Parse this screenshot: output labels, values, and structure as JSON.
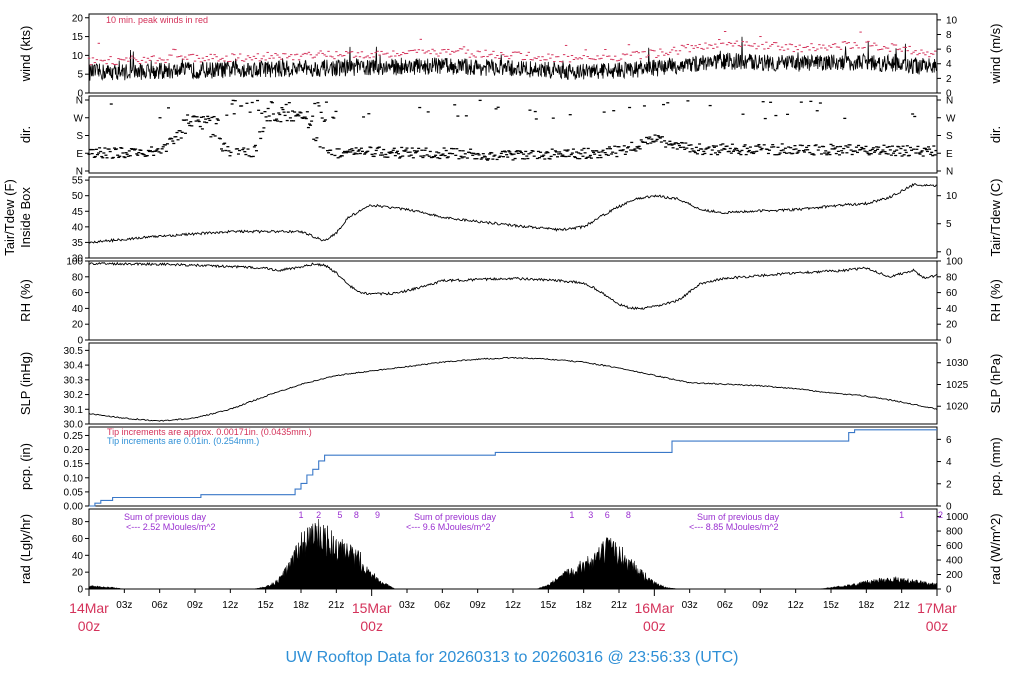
{
  "title": "UW Rooftop Data for 20260313  to  20260316 @ 23:56:33  (UTC)",
  "colors": {
    "trace": "#000000",
    "peak": "#d4325a",
    "pcp": "#3a78c8",
    "ticklabel": "#d4325a",
    "note_pink": "#d4325a",
    "note_blue": "#2e8fd6",
    "purple": "#9a2fd0"
  },
  "time_axis": {
    "minor_labels": [
      "03z",
      "06z",
      "09z",
      "12z",
      "15z",
      "18z",
      "21z"
    ],
    "day_labels": [
      {
        "date": "14Mar",
        "hour": "00z"
      },
      {
        "date": "15Mar",
        "hour": "00z"
      },
      {
        "date": "16Mar",
        "hour": "00z"
      },
      {
        "date": "17Mar",
        "hour": "00z"
      }
    ]
  },
  "chart_data": [
    {
      "id": "wind",
      "type": "line",
      "ylabel_left": "wind (kts)",
      "ylabel_right": "wind (m/s)",
      "ylim": [
        0,
        21
      ],
      "yticks_left": [
        0,
        5,
        10,
        15,
        20
      ],
      "yticks_right": [
        0,
        2,
        4,
        6,
        8,
        10
      ],
      "annotation": "10 min. peak winds in red",
      "series": [
        {
          "name": "wind",
          "x_hours": [
            0,
            6,
            12,
            18,
            24,
            30,
            36,
            42,
            48,
            54,
            60,
            66,
            72
          ],
          "values": [
            5.5,
            5.8,
            6.2,
            6.5,
            6.8,
            7.2,
            6.5,
            5.6,
            6.6,
            8.5,
            7.8,
            8.2,
            6.8
          ]
        },
        {
          "name": "10 min. peak winds",
          "x_hours": [
            0,
            6,
            12,
            18,
            24,
            30,
            36,
            42,
            48,
            54,
            60,
            66,
            72
          ],
          "values": [
            8,
            8.5,
            9,
            9.5,
            10,
            10.5,
            9.5,
            8.5,
            10,
            13,
            11.5,
            12.5,
            10
          ]
        }
      ]
    },
    {
      "id": "dir",
      "type": "scatter",
      "ylabel_left": "dir.",
      "ylabel_right": "dir.",
      "yticks_left": [
        "N",
        "E",
        "S",
        "W",
        "N"
      ],
      "yticks_right": [
        "N",
        "E",
        "S",
        "W",
        "N"
      ]
    },
    {
      "id": "temp",
      "type": "line",
      "ylabel_left": "Tair/Tdew (F)",
      "ylabel_left2": "Inside Box",
      "ylabel_right": "Tair/Tdew (C)",
      "ylim": [
        30,
        56
      ],
      "yticks_left": [
        30,
        35,
        40,
        45,
        50,
        55
      ],
      "yticks_right": [
        0,
        5,
        10
      ],
      "series": [
        {
          "name": "Tair",
          "x_hours": [
            0,
            6,
            12,
            18,
            20,
            21,
            22,
            24,
            26,
            28,
            30,
            36,
            40,
            42,
            44,
            46,
            48,
            50,
            52,
            54,
            56,
            60,
            64,
            66,
            68,
            70,
            72
          ],
          "values": [
            35,
            37,
            38.5,
            38.5,
            35.5,
            38,
            43,
            47,
            46,
            45,
            43,
            40.5,
            39,
            40,
            44.5,
            48.5,
            50,
            49,
            45.5,
            44.5,
            45,
            45.5,
            47,
            47.5,
            49.5,
            53.5,
            53
          ]
        }
      ]
    },
    {
      "id": "rh",
      "type": "line",
      "ylabel_left": "RH (%)",
      "ylabel_right": "RH (%)",
      "ylim": [
        0,
        100
      ],
      "yticks_left": [
        0,
        20,
        40,
        60,
        80,
        100
      ],
      "yticks_right": [
        0,
        20,
        40,
        60,
        80,
        100
      ],
      "series": [
        {
          "name": "RH",
          "x_hours": [
            0,
            6,
            12,
            15,
            16,
            18,
            19,
            20,
            21,
            22,
            23,
            24,
            26,
            28,
            30,
            36,
            40,
            42,
            43,
            44,
            45,
            46,
            47,
            48,
            50,
            52,
            54,
            60,
            64,
            66,
            68,
            70,
            71,
            72
          ],
          "values": [
            97,
            96,
            93,
            91,
            88,
            92,
            96,
            95,
            85,
            70,
            60,
            58,
            59,
            66,
            75,
            78,
            75,
            72,
            65,
            55,
            45,
            40,
            40,
            42,
            50,
            72,
            78,
            85,
            88,
            91,
            80,
            88,
            78,
            82
          ]
        }
      ]
    },
    {
      "id": "slp",
      "type": "line",
      "ylabel_left": "SLP (inHg)",
      "ylabel_right": "SLP (hPa)",
      "ylim": [
        30.0,
        30.55
      ],
      "yticks_left": [
        30.0,
        30.1,
        30.2,
        30.3,
        30.4,
        30.5
      ],
      "yticks_right": [
        1020,
        1025,
        1030
      ],
      "series": [
        {
          "name": "SLP",
          "x_hours": [
            0,
            3,
            6,
            9,
            12,
            15,
            18,
            21,
            24,
            27,
            30,
            33,
            36,
            39,
            42,
            45,
            48,
            51,
            54,
            57,
            60,
            63,
            66,
            69,
            72
          ],
          "values": [
            30.07,
            30.04,
            30.02,
            30.04,
            30.1,
            30.19,
            30.27,
            30.33,
            30.36,
            30.39,
            30.42,
            30.44,
            30.45,
            30.44,
            30.42,
            30.38,
            30.33,
            30.28,
            30.27,
            30.26,
            30.24,
            30.21,
            30.19,
            30.15,
            30.1
          ]
        }
      ]
    },
    {
      "id": "pcp",
      "type": "line",
      "ylabel_left": "pcp. (in)",
      "ylabel_right": "pcp. (mm)",
      "ylim": [
        0,
        0.28
      ],
      "yticks_left": [
        0.0,
        0.05,
        0.1,
        0.15,
        0.2,
        0.25
      ],
      "yticks_right": [
        0,
        2,
        4,
        6
      ],
      "annotations": [
        "Tip increments are approx. 0.00171in. (0.0435mm.)",
        "Tip increments are 0.01in. (0.254mm.)"
      ],
      "series": [
        {
          "name": "precip",
          "x_hours": [
            0,
            0.5,
            1,
            2,
            9,
            9.5,
            17,
            17.5,
            18,
            18.5,
            19,
            19.5,
            20,
            21,
            34,
            34.5,
            49,
            49.5,
            64,
            64.5,
            65,
            72
          ],
          "values": [
            0,
            0.01,
            0.02,
            0.03,
            0.03,
            0.04,
            0.04,
            0.06,
            0.08,
            0.11,
            0.13,
            0.16,
            0.18,
            0.18,
            0.18,
            0.19,
            0.19,
            0.23,
            0.23,
            0.26,
            0.27,
            0.27
          ]
        }
      ]
    },
    {
      "id": "rad",
      "type": "area",
      "ylabel_left": "rad (Lgly/hr)",
      "ylabel_right": "rad (W/m^2)",
      "ylim": [
        0,
        95
      ],
      "yticks_left": [
        0,
        20,
        40,
        60,
        80
      ],
      "yticks_right": [
        0,
        200,
        400,
        600,
        800,
        1000
      ],
      "day_notes": [
        {
          "label": "Sum of previous day",
          "value": "<--- 2.52 MJoules/m^2"
        },
        {
          "label": "Sum of previous day",
          "value": "<--- 9.6 MJoules/m^2"
        },
        {
          "label": "Sum of previous day",
          "value": "<--- 8.85 MJoules/m^2"
        }
      ],
      "hour_markers": [
        {
          "hour": 18,
          "label": "1"
        },
        {
          "hour": 19.5,
          "label": "2"
        },
        {
          "hour": 21.3,
          "label": "5"
        },
        {
          "hour": 22.7,
          "label": "8"
        },
        {
          "hour": 24.5,
          "label": "9"
        },
        {
          "hour": 41,
          "label": "1"
        },
        {
          "hour": 42.6,
          "label": "3"
        },
        {
          "hour": 44,
          "label": "6"
        },
        {
          "hour": 45.8,
          "label": "8"
        },
        {
          "hour": 69,
          "label": "1"
        },
        {
          "hour": 72.3,
          "label": "2"
        }
      ],
      "series": [
        {
          "name": "radiation",
          "x_hours": [
            0,
            1,
            2,
            3,
            14,
            15,
            16,
            17,
            18,
            19,
            20,
            21,
            22,
            23,
            24,
            25,
            26,
            38,
            39,
            40,
            41,
            42,
            43,
            44,
            45,
            46,
            47,
            48,
            49,
            50,
            62,
            63,
            64,
            65,
            66,
            67,
            68,
            69,
            70,
            71,
            72
          ],
          "values": [
            4,
            3,
            2,
            0,
            0,
            3,
            10,
            30,
            60,
            75,
            70,
            55,
            48,
            40,
            20,
            8,
            0,
            0,
            5,
            15,
            25,
            32,
            40,
            55,
            48,
            35,
            20,
            8,
            2,
            0,
            0,
            2,
            4,
            6,
            9,
            12,
            14,
            12,
            10,
            8,
            6
          ]
        }
      ]
    }
  ]
}
